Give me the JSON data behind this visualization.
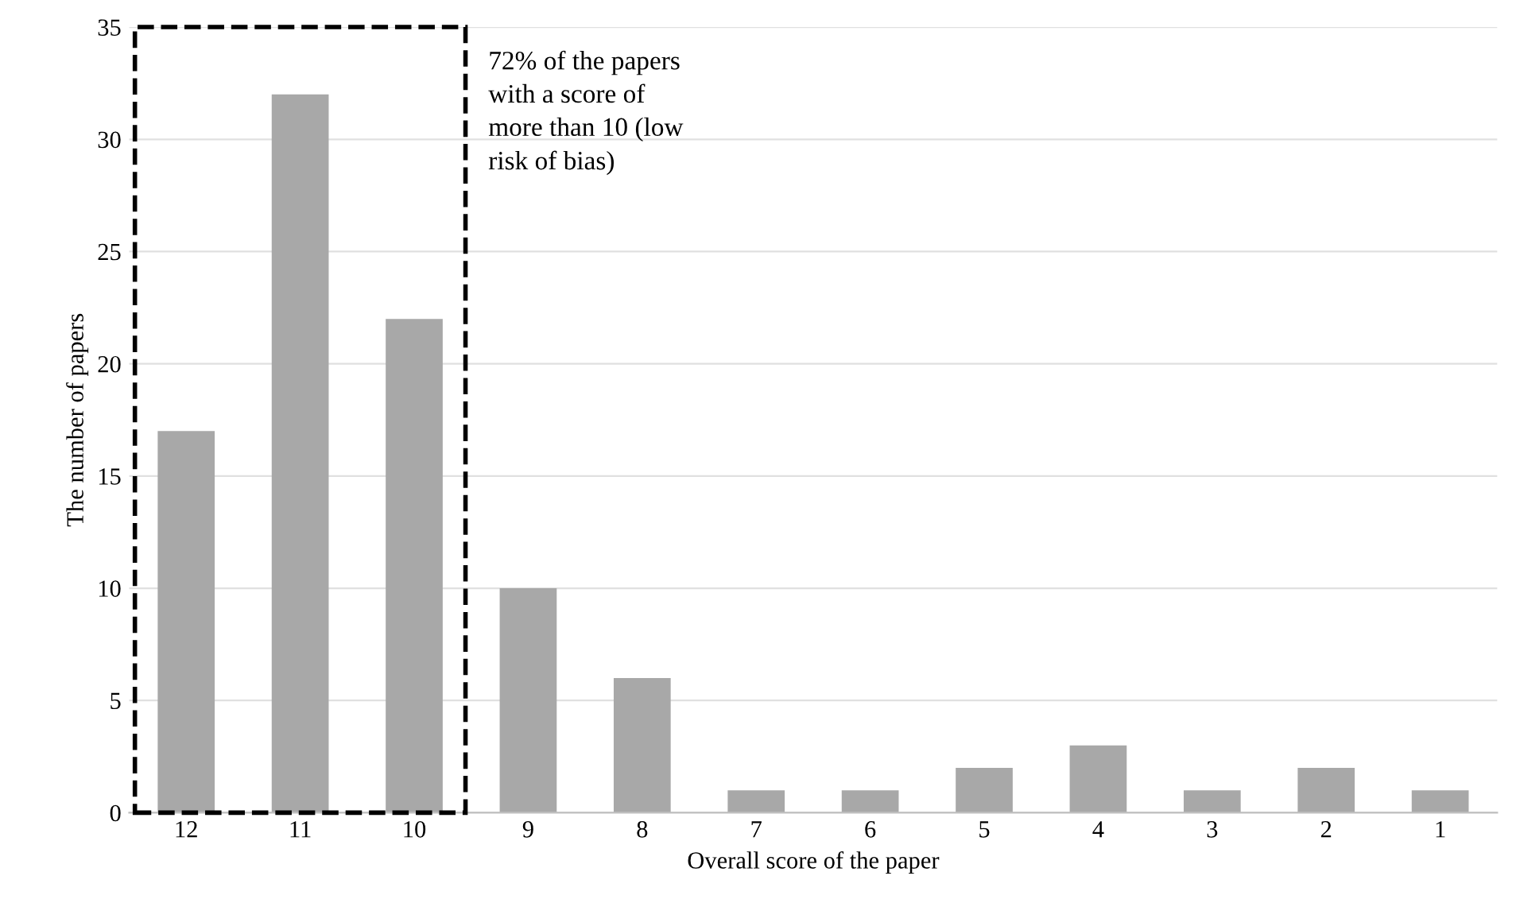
{
  "chart_data": {
    "type": "bar",
    "xlabel": "Overall score of the paper",
    "ylabel": "The number of papers",
    "categories": [
      "12",
      "11",
      "10",
      "9",
      "8",
      "7",
      "6",
      "5",
      "4",
      "3",
      "2",
      "1"
    ],
    "values": [
      17,
      32,
      22,
      10,
      6,
      1,
      1,
      2,
      3,
      1,
      2,
      1
    ],
    "color": "#a8a8a8",
    "ylim": [
      0,
      35
    ],
    "yticks": [
      0,
      5,
      10,
      15,
      20,
      25,
      30,
      35
    ],
    "grid": "y",
    "annotations": [
      "72% of the papers\nwith a score of\nmore than 10 (low\nrisk of bias)"
    ]
  }
}
